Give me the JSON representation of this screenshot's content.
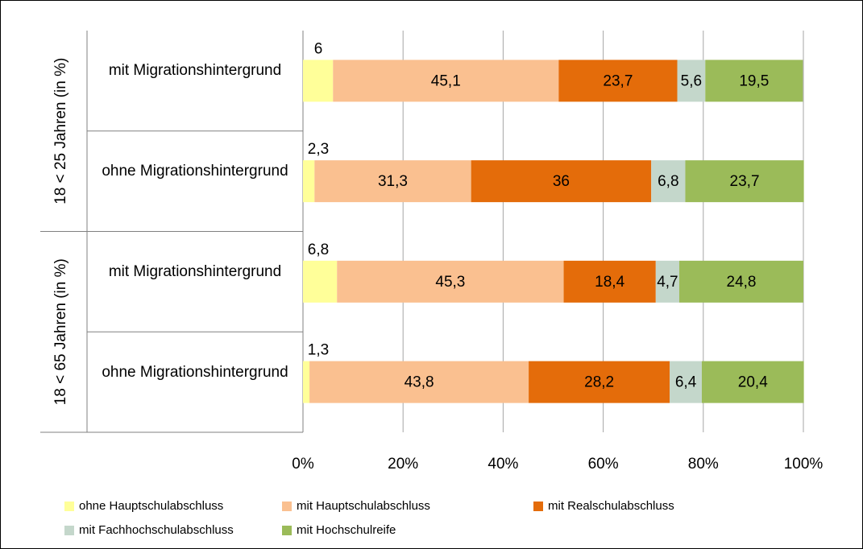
{
  "chart_data": {
    "type": "stacked_bar_horizontal",
    "groups": [
      "18 < 25 Jahren (in %)",
      "18 < 65 Jahren (in %)"
    ],
    "categories": [
      "mit Migrationshintergrund",
      "ohne Migrationshintergrund",
      "mit Migrationshintergrund",
      "ohne Migrationshintergrund"
    ],
    "series": [
      {
        "name": "ohne Hauptschulabschluss",
        "color": "#ffff99",
        "values": [
          6,
          2.3,
          6.8,
          1.3
        ],
        "value_labels": [
          "6",
          "2,3",
          "6,8",
          "1,3"
        ]
      },
      {
        "name": "mit Hauptschulabschluss",
        "color": "#fac090",
        "values": [
          45.1,
          31.3,
          45.3,
          43.8
        ],
        "value_labels": [
          "45,1",
          "31,3",
          "45,3",
          "43,8"
        ]
      },
      {
        "name": "mit Realschulabschluss",
        "color": "#e46c0a",
        "values": [
          23.7,
          36,
          18.4,
          28.2
        ],
        "value_labels": [
          "23,7",
          "36",
          "18,4",
          "28,2"
        ]
      },
      {
        "name": "mit Fachhochschulabschluss",
        "color": "#c4d7cb",
        "values": [
          5.6,
          6.8,
          4.7,
          6.4
        ],
        "value_labels": [
          "5,6",
          "6,8",
          "4,7",
          "6,4"
        ]
      },
      {
        "name": "mit Hochschulreife",
        "color": "#9bbb59",
        "values": [
          19.5,
          23.7,
          24.8,
          20.4
        ],
        "value_labels": [
          "19,5",
          "23,7",
          "24,8",
          "20,4"
        ]
      }
    ],
    "xlim": [
      0,
      100
    ],
    "xticks": [
      {
        "value": 0,
        "label": "0%"
      },
      {
        "value": 20,
        "label": "20%"
      },
      {
        "value": 40,
        "label": "40%"
      },
      {
        "value": 60,
        "label": "60%"
      },
      {
        "value": 80,
        "label": "80%"
      },
      {
        "value": 100,
        "label": "100%"
      }
    ],
    "grid": true,
    "legend": "bottom"
  }
}
